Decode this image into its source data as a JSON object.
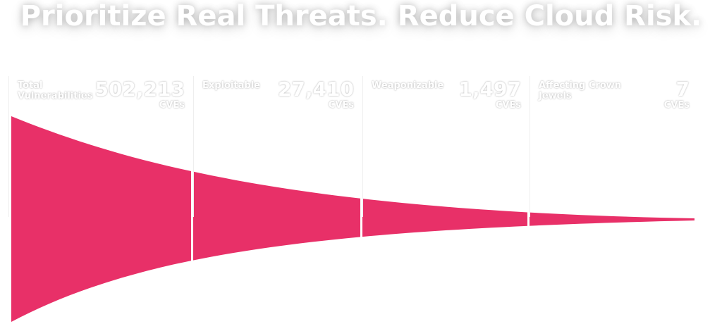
{
  "title": "Prioritize Real Threats. Reduce Cloud Risk.",
  "stages": [
    {
      "label": "Total Vulnerabilities",
      "value": "502,213",
      "unit": "CVEs"
    },
    {
      "label": "Exploitable",
      "value": "27,410",
      "unit": "CVEs"
    },
    {
      "label": "Weaponizable",
      "value": "1,497",
      "unit": "CVEs"
    },
    {
      "label": "Affecting Crown Jewels",
      "value": "7",
      "unit": "CVEs"
    }
  ]
}
